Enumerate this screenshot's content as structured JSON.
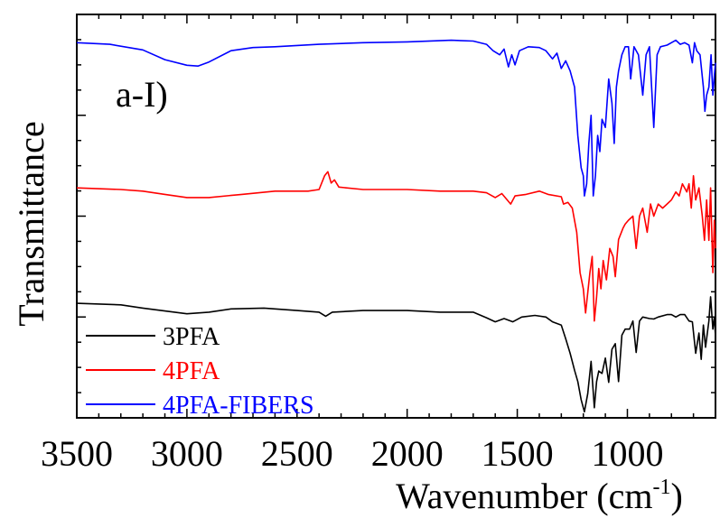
{
  "chart_data": {
    "type": "line",
    "panel_label": "a-I)",
    "xlabel": "Wavenumber (cm",
    "xlabel_sup": "-1",
    "xlabel_close": ")",
    "ylabel": "Transmittance",
    "xlim": [
      3500,
      600
    ],
    "x_ticks": [
      "3500",
      "3000",
      "2500",
      "2000",
      "1500",
      "1000"
    ],
    "x_tick_values": [
      3500,
      3000,
      2500,
      2000,
      1500,
      1000
    ],
    "y_tick_labels_shown": false,
    "grid": false,
    "legend_position": "bottom-left",
    "ylim": [
      0,
      1
    ],
    "series": [
      {
        "name": "3PFA",
        "color": "#000000",
        "points": [
          [
            3500,
            0.284
          ],
          [
            3300,
            0.28
          ],
          [
            3200,
            0.272
          ],
          [
            3000,
            0.258
          ],
          [
            2900,
            0.262
          ],
          [
            2800,
            0.27
          ],
          [
            2650,
            0.272
          ],
          [
            2500,
            0.266
          ],
          [
            2400,
            0.262
          ],
          [
            2370,
            0.252
          ],
          [
            2340,
            0.262
          ],
          [
            2200,
            0.266
          ],
          [
            2000,
            0.266
          ],
          [
            1850,
            0.262
          ],
          [
            1700,
            0.262
          ],
          [
            1640,
            0.248
          ],
          [
            1600,
            0.238
          ],
          [
            1560,
            0.246
          ],
          [
            1520,
            0.238
          ],
          [
            1480,
            0.25
          ],
          [
            1420,
            0.254
          ],
          [
            1370,
            0.25
          ],
          [
            1340,
            0.238
          ],
          [
            1300,
            0.23
          ],
          [
            1280,
            0.196
          ],
          [
            1260,
            0.16
          ],
          [
            1240,
            0.118
          ],
          [
            1225,
            0.09
          ],
          [
            1210,
            0.045
          ],
          [
            1195,
            0.015
          ],
          [
            1180,
            0.06
          ],
          [
            1165,
            0.14
          ],
          [
            1150,
            0.025
          ],
          [
            1140,
            0.09
          ],
          [
            1130,
            0.116
          ],
          [
            1115,
            0.11
          ],
          [
            1100,
            0.148
          ],
          [
            1085,
            0.088
          ],
          [
            1070,
            0.17
          ],
          [
            1055,
            0.184
          ],
          [
            1040,
            0.09
          ],
          [
            1025,
            0.205
          ],
          [
            1010,
            0.22
          ],
          [
            990,
            0.22
          ],
          [
            975,
            0.24
          ],
          [
            960,
            0.162
          ],
          [
            945,
            0.24
          ],
          [
            930,
            0.25
          ],
          [
            900,
            0.246
          ],
          [
            880,
            0.245
          ],
          [
            860,
            0.25
          ],
          [
            820,
            0.256
          ],
          [
            800,
            0.256
          ],
          [
            780,
            0.25
          ],
          [
            760,
            0.256
          ],
          [
            740,
            0.256
          ],
          [
            720,
            0.24
          ],
          [
            705,
            0.238
          ],
          [
            690,
            0.16
          ],
          [
            675,
            0.21
          ],
          [
            665,
            0.145
          ],
          [
            655,
            0.23
          ],
          [
            645,
            0.175
          ],
          [
            630,
            0.24
          ],
          [
            622,
            0.3
          ],
          [
            612,
            0.22
          ],
          [
            605,
            0.25
          ],
          [
            600,
            0.2
          ]
        ]
      },
      {
        "name": "4PFA",
        "color": "#ff0000",
        "points": [
          [
            3500,
            0.57
          ],
          [
            3300,
            0.566
          ],
          [
            3200,
            0.562
          ],
          [
            3100,
            0.554
          ],
          [
            3000,
            0.546
          ],
          [
            2900,
            0.546
          ],
          [
            2750,
            0.554
          ],
          [
            2600,
            0.562
          ],
          [
            2450,
            0.562
          ],
          [
            2400,
            0.566
          ],
          [
            2375,
            0.6
          ],
          [
            2360,
            0.61
          ],
          [
            2345,
            0.582
          ],
          [
            2330,
            0.59
          ],
          [
            2310,
            0.572
          ],
          [
            2200,
            0.566
          ],
          [
            2000,
            0.566
          ],
          [
            1850,
            0.562
          ],
          [
            1700,
            0.562
          ],
          [
            1640,
            0.558
          ],
          [
            1600,
            0.546
          ],
          [
            1570,
            0.556
          ],
          [
            1530,
            0.53
          ],
          [
            1510,
            0.55
          ],
          [
            1460,
            0.554
          ],
          [
            1400,
            0.562
          ],
          [
            1360,
            0.554
          ],
          [
            1300,
            0.548
          ],
          [
            1290,
            0.53
          ],
          [
            1270,
            0.534
          ],
          [
            1250,
            0.52
          ],
          [
            1230,
            0.46
          ],
          [
            1215,
            0.36
          ],
          [
            1200,
            0.32
          ],
          [
            1190,
            0.26
          ],
          [
            1180,
            0.31
          ],
          [
            1170,
            0.36
          ],
          [
            1160,
            0.4
          ],
          [
            1150,
            0.24
          ],
          [
            1140,
            0.3
          ],
          [
            1130,
            0.37
          ],
          [
            1120,
            0.32
          ],
          [
            1110,
            0.39
          ],
          [
            1095,
            0.342
          ],
          [
            1080,
            0.42
          ],
          [
            1065,
            0.4
          ],
          [
            1055,
            0.35
          ],
          [
            1040,
            0.442
          ],
          [
            1020,
            0.47
          ],
          [
            1010,
            0.48
          ],
          [
            995,
            0.49
          ],
          [
            975,
            0.5
          ],
          [
            960,
            0.42
          ],
          [
            945,
            0.5
          ],
          [
            930,
            0.52
          ],
          [
            910,
            0.46
          ],
          [
            895,
            0.53
          ],
          [
            880,
            0.5
          ],
          [
            860,
            0.53
          ],
          [
            840,
            0.52
          ],
          [
            820,
            0.53
          ],
          [
            800,
            0.54
          ],
          [
            780,
            0.56
          ],
          [
            765,
            0.55
          ],
          [
            750,
            0.58
          ],
          [
            730,
            0.56
          ],
          [
            720,
            0.58
          ],
          [
            710,
            0.52
          ],
          [
            700,
            0.6
          ],
          [
            690,
            0.54
          ],
          [
            675,
            0.57
          ],
          [
            660,
            0.5
          ],
          [
            650,
            0.44
          ],
          [
            640,
            0.54
          ],
          [
            630,
            0.44
          ],
          [
            622,
            0.57
          ],
          [
            612,
            0.36
          ],
          [
            605,
            0.49
          ],
          [
            600,
            0.42
          ]
        ]
      },
      {
        "name": "4PFA-FIBERS",
        "color": "#0000ff",
        "points": [
          [
            3500,
            0.93
          ],
          [
            3350,
            0.926
          ],
          [
            3200,
            0.912
          ],
          [
            3100,
            0.888
          ],
          [
            3000,
            0.874
          ],
          [
            2950,
            0.872
          ],
          [
            2900,
            0.882
          ],
          [
            2800,
            0.91
          ],
          [
            2700,
            0.918
          ],
          [
            2600,
            0.92
          ],
          [
            2400,
            0.926
          ],
          [
            2200,
            0.93
          ],
          [
            2000,
            0.932
          ],
          [
            1800,
            0.936
          ],
          [
            1700,
            0.934
          ],
          [
            1640,
            0.926
          ],
          [
            1610,
            0.91
          ],
          [
            1580,
            0.9
          ],
          [
            1560,
            0.914
          ],
          [
            1540,
            0.87
          ],
          [
            1525,
            0.9
          ],
          [
            1510,
            0.875
          ],
          [
            1490,
            0.91
          ],
          [
            1450,
            0.92
          ],
          [
            1400,
            0.918
          ],
          [
            1370,
            0.91
          ],
          [
            1340,
            0.89
          ],
          [
            1320,
            0.904
          ],
          [
            1300,
            0.866
          ],
          [
            1280,
            0.885
          ],
          [
            1260,
            0.86
          ],
          [
            1240,
            0.82
          ],
          [
            1225,
            0.7
          ],
          [
            1210,
            0.62
          ],
          [
            1200,
            0.6
          ],
          [
            1195,
            0.55
          ],
          [
            1185,
            0.58
          ],
          [
            1175,
            0.68
          ],
          [
            1165,
            0.75
          ],
          [
            1155,
            0.55
          ],
          [
            1145,
            0.6
          ],
          [
            1135,
            0.7
          ],
          [
            1125,
            0.66
          ],
          [
            1115,
            0.74
          ],
          [
            1100,
            0.72
          ],
          [
            1085,
            0.84
          ],
          [
            1070,
            0.78
          ],
          [
            1060,
            0.68
          ],
          [
            1050,
            0.82
          ],
          [
            1040,
            0.86
          ],
          [
            1025,
            0.9
          ],
          [
            1010,
            0.92
          ],
          [
            995,
            0.92
          ],
          [
            985,
            0.84
          ],
          [
            970,
            0.92
          ],
          [
            950,
            0.9
          ],
          [
            930,
            0.8
          ],
          [
            915,
            0.9
          ],
          [
            900,
            0.92
          ],
          [
            880,
            0.72
          ],
          [
            865,
            0.9
          ],
          [
            850,
            0.92
          ],
          [
            820,
            0.924
          ],
          [
            800,
            0.93
          ],
          [
            780,
            0.936
          ],
          [
            760,
            0.926
          ],
          [
            740,
            0.93
          ],
          [
            720,
            0.924
          ],
          [
            705,
            0.88
          ],
          [
            695,
            0.93
          ],
          [
            685,
            0.91
          ],
          [
            670,
            0.9
          ],
          [
            655,
            0.82
          ],
          [
            648,
            0.76
          ],
          [
            640,
            0.8
          ],
          [
            630,
            0.82
          ],
          [
            620,
            0.9
          ],
          [
            612,
            0.8
          ],
          [
            605,
            0.85
          ],
          [
            600,
            0.88
          ]
        ]
      }
    ]
  }
}
